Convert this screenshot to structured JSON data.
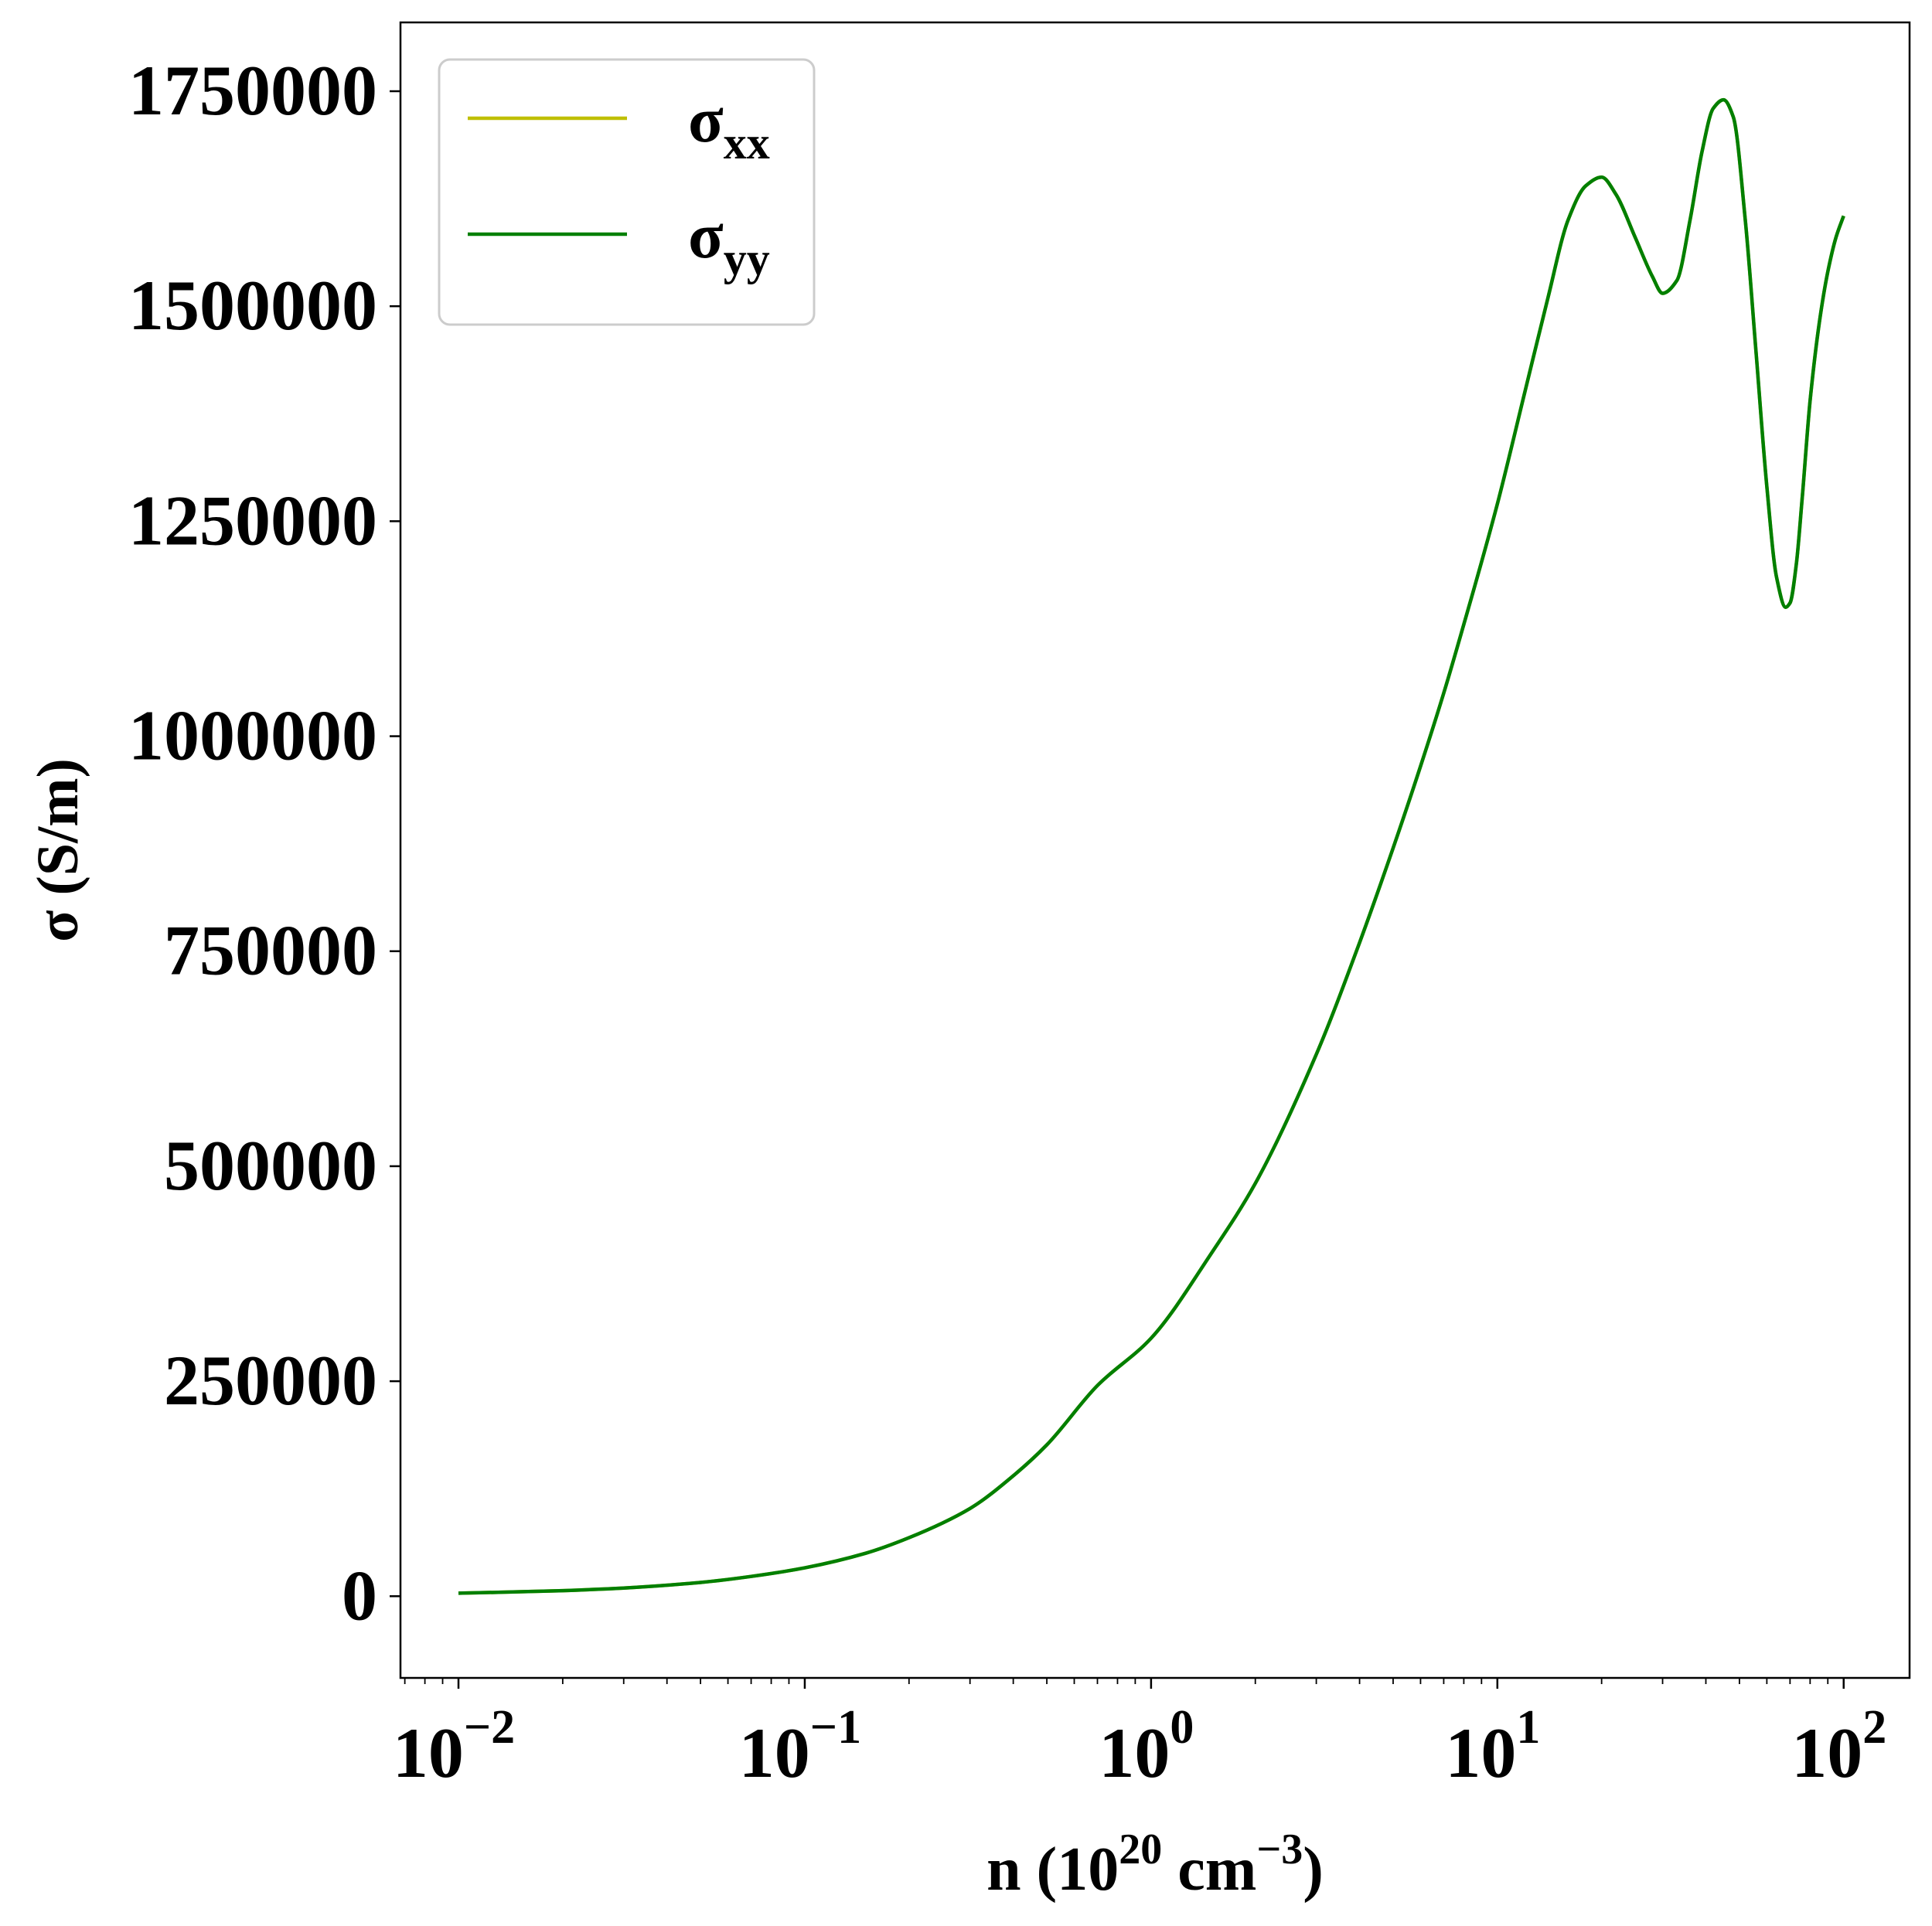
{
  "chart_data": {
    "type": "line",
    "xscale": "log",
    "xlim": [
      0.0068,
      155
    ],
    "ylim": [
      -95000,
      1830000
    ],
    "grid": false,
    "legend_position": "top-left",
    "xlabel": {
      "main": "n (10",
      "sup": "20",
      "mid": " cm",
      "sup2": "−3",
      "end": ")"
    },
    "ylabel": "σ (S/m)",
    "xticks": [
      {
        "value": 0.01,
        "base": "10",
        "exp": "−2"
      },
      {
        "value": 0.1,
        "base": "10",
        "exp": "−1"
      },
      {
        "value": 1,
        "base": "10",
        "exp": "0"
      },
      {
        "value": 10,
        "base": "10",
        "exp": "1"
      },
      {
        "value": 100,
        "base": "10",
        "exp": "2"
      }
    ],
    "yticks": [
      {
        "value": 0,
        "label": "0"
      },
      {
        "value": 250000,
        "label": "250000"
      },
      {
        "value": 500000,
        "label": "500000"
      },
      {
        "value": 750000,
        "label": "750000"
      },
      {
        "value": 1000000,
        "label": "1000000"
      },
      {
        "value": 1250000,
        "label": "1250000"
      },
      {
        "value": 1500000,
        "label": "1500000"
      },
      {
        "value": 1750000,
        "label": "1750000"
      }
    ],
    "series": [
      {
        "name": "σxx",
        "name_main": "σ",
        "name_sub": "xx",
        "color": "#bfbf00",
        "x": [
          0.01,
          0.02,
          0.03,
          0.05,
          0.07,
          0.1,
          0.15,
          0.2,
          0.3,
          0.4,
          0.5,
          0.7,
          1.0,
          1.5,
          2.0,
          3.0,
          4.0,
          5.0,
          6.0,
          7.0,
          8.0,
          10.0,
          12.0,
          14.0,
          16.0,
          18.0,
          20.0,
          22.0,
          25.0,
          28.0,
          30.0,
          33.0,
          36.0,
          39.0,
          42.0,
          45.0,
          48.0,
          52.0,
          56.0,
          60.0,
          64.0,
          68.0,
          70.0,
          73.0,
          76.0,
          80.0,
          85.0,
          90.0,
          95.0,
          100.0
        ],
        "values": [
          3500,
          6500,
          9500,
          16000,
          23000,
          33000,
          50000,
          68000,
          102000,
          140000,
          176000,
          245000,
          300000,
          400000,
          480000,
          630000,
          760000,
          870000,
          965000,
          1050000,
          1130000,
          1270000,
          1400000,
          1510000,
          1600000,
          1640000,
          1650000,
          1630000,
          1580000,
          1535000,
          1515000,
          1530000,
          1600000,
          1680000,
          1730000,
          1740000,
          1720000,
          1600000,
          1440000,
          1290000,
          1185000,
          1150000,
          1155000,
          1200000,
          1280000,
          1390000,
          1480000,
          1540000,
          1580000,
          1605000
        ]
      },
      {
        "name": "σyy",
        "name_main": "σ",
        "name_sub": "yy",
        "color": "#007f00",
        "x": [
          0.01,
          0.02,
          0.03,
          0.05,
          0.07,
          0.1,
          0.15,
          0.2,
          0.3,
          0.4,
          0.5,
          0.7,
          1.0,
          1.5,
          2.0,
          3.0,
          4.0,
          5.0,
          6.0,
          7.0,
          8.0,
          10.0,
          12.0,
          14.0,
          16.0,
          18.0,
          20.0,
          22.0,
          25.0,
          28.0,
          30.0,
          33.0,
          36.0,
          39.0,
          42.0,
          45.0,
          48.0,
          52.0,
          56.0,
          60.0,
          64.0,
          68.0,
          70.0,
          73.0,
          76.0,
          80.0,
          85.0,
          90.0,
          95.0,
          100.0
        ],
        "values": [
          3500,
          6500,
          9500,
          16000,
          23000,
          33000,
          50000,
          68000,
          102000,
          140000,
          176000,
          245000,
          300000,
          400000,
          480000,
          630000,
          760000,
          870000,
          965000,
          1050000,
          1130000,
          1270000,
          1400000,
          1510000,
          1600000,
          1640000,
          1650000,
          1630000,
          1580000,
          1535000,
          1515000,
          1530000,
          1600000,
          1680000,
          1730000,
          1740000,
          1720000,
          1600000,
          1440000,
          1290000,
          1185000,
          1150000,
          1155000,
          1200000,
          1280000,
          1390000,
          1480000,
          1540000,
          1580000,
          1605000
        ]
      }
    ]
  }
}
